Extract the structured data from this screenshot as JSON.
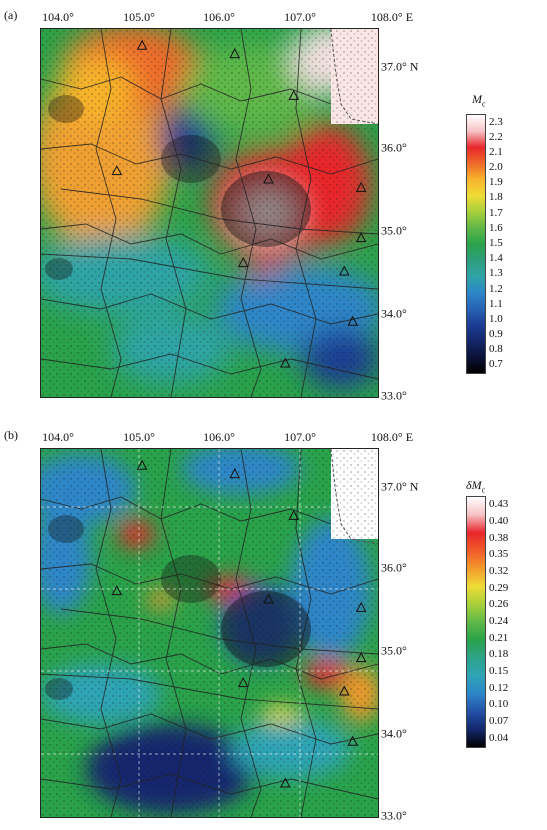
{
  "panels": [
    {
      "id": "a",
      "label": "(a)",
      "lon_ticks": [
        "104.0°",
        "105.0°",
        "106.0°",
        "107.0°",
        "108.0° E"
      ],
      "lat_ticks": [
        "37.0° N",
        "36.0°",
        "35.0°",
        "34.0°",
        "33.0°"
      ],
      "colorbar": {
        "title_main": "M",
        "title_sub": "c",
        "ticks": [
          "2.3",
          "2.2",
          "2.1",
          "2.0",
          "1.9",
          "1.8",
          "1.7",
          "1.6",
          "1.5",
          "1.4",
          "1.3",
          "1.2",
          "1.1",
          "1.0",
          "0.9",
          "0.8",
          "0.7"
        ],
        "colors": [
          "#ffffff",
          "#f7c2c5",
          "#e8262b",
          "#ee6a2a",
          "#f7b42c",
          "#efdc36",
          "#a6cf3a",
          "#5fb848",
          "#2aa24a",
          "#2f9e7d",
          "#2ea4a6",
          "#2d86c8",
          "#2763b5",
          "#1c3d93",
          "#15276b",
          "#0b1238",
          "#000000"
        ]
      }
    },
    {
      "id": "b",
      "label": "(b)",
      "lon_ticks": [
        "104.0°",
        "105.0°",
        "106.0°",
        "107.0°",
        "108.0° E"
      ],
      "lat_ticks": [
        "37.0° N",
        "36.0°",
        "35.0°",
        "34.0°",
        "33.0°"
      ],
      "colorbar": {
        "title_main": "δM",
        "title_sub": "c",
        "ticks": [
          "0.43",
          "0.40",
          "0.38",
          "0.35",
          "0.32",
          "0.29",
          "0.26",
          "0.24",
          "0.21",
          "0.18",
          "0.15",
          "0.12",
          "0.10",
          "0.07",
          "0.04"
        ],
        "colors": [
          "#ffffff",
          "#f7c2c5",
          "#e8262b",
          "#ef5a2a",
          "#f39a2c",
          "#efdc36",
          "#a8d03a",
          "#5fb848",
          "#2aa24a",
          "#2ea38a",
          "#2ea4b5",
          "#2d86c8",
          "#2351a8",
          "#14286e",
          "#000000"
        ]
      }
    }
  ],
  "map_data": {
    "lon_range": [
      104.0,
      108.0
    ],
    "lat_range": [
      33.0,
      37.4
    ],
    "panel_a_features": [
      {
        "kind": "high",
        "lon": 106.5,
        "lat": 35.3,
        "level": "2.3"
      },
      {
        "kind": "high",
        "lon": 107.3,
        "lat": 35.5,
        "level": "2.1"
      },
      {
        "kind": "low",
        "lon": 105.6,
        "lat": 36.2,
        "level": "0.9"
      },
      {
        "kind": "low",
        "lon": 106.8,
        "lat": 34.2,
        "level": "1.0"
      },
      {
        "kind": "moderate",
        "lon": 104.4,
        "lat": 36.4,
        "level": "1.8"
      },
      {
        "kind": "moderate",
        "lon": 105.0,
        "lat": 37.1,
        "level": "2.0"
      }
    ],
    "panel_b_features": [
      {
        "kind": "high",
        "lon": 107.3,
        "lat": 34.9,
        "level": "0.38"
      },
      {
        "kind": "high",
        "lon": 106.1,
        "lat": 35.9,
        "level": "0.35"
      },
      {
        "kind": "high",
        "lon": 105.0,
        "lat": 36.4,
        "level": "0.32"
      },
      {
        "kind": "low",
        "lon": 105.4,
        "lat": 33.7,
        "level": "0.07"
      },
      {
        "kind": "low",
        "lon": 106.6,
        "lat": 35.1,
        "level": "0.10"
      }
    ],
    "station_lonlat": [
      [
        105.2,
        37.2
      ],
      [
        106.3,
        37.1
      ],
      [
        107.0,
        36.6
      ],
      [
        104.9,
        35.7
      ],
      [
        106.7,
        35.6
      ],
      [
        107.8,
        35.5
      ],
      [
        107.8,
        34.9
      ],
      [
        107.6,
        34.5
      ],
      [
        106.4,
        34.6
      ],
      [
        106.9,
        33.4
      ],
      [
        107.7,
        33.9
      ]
    ]
  }
}
